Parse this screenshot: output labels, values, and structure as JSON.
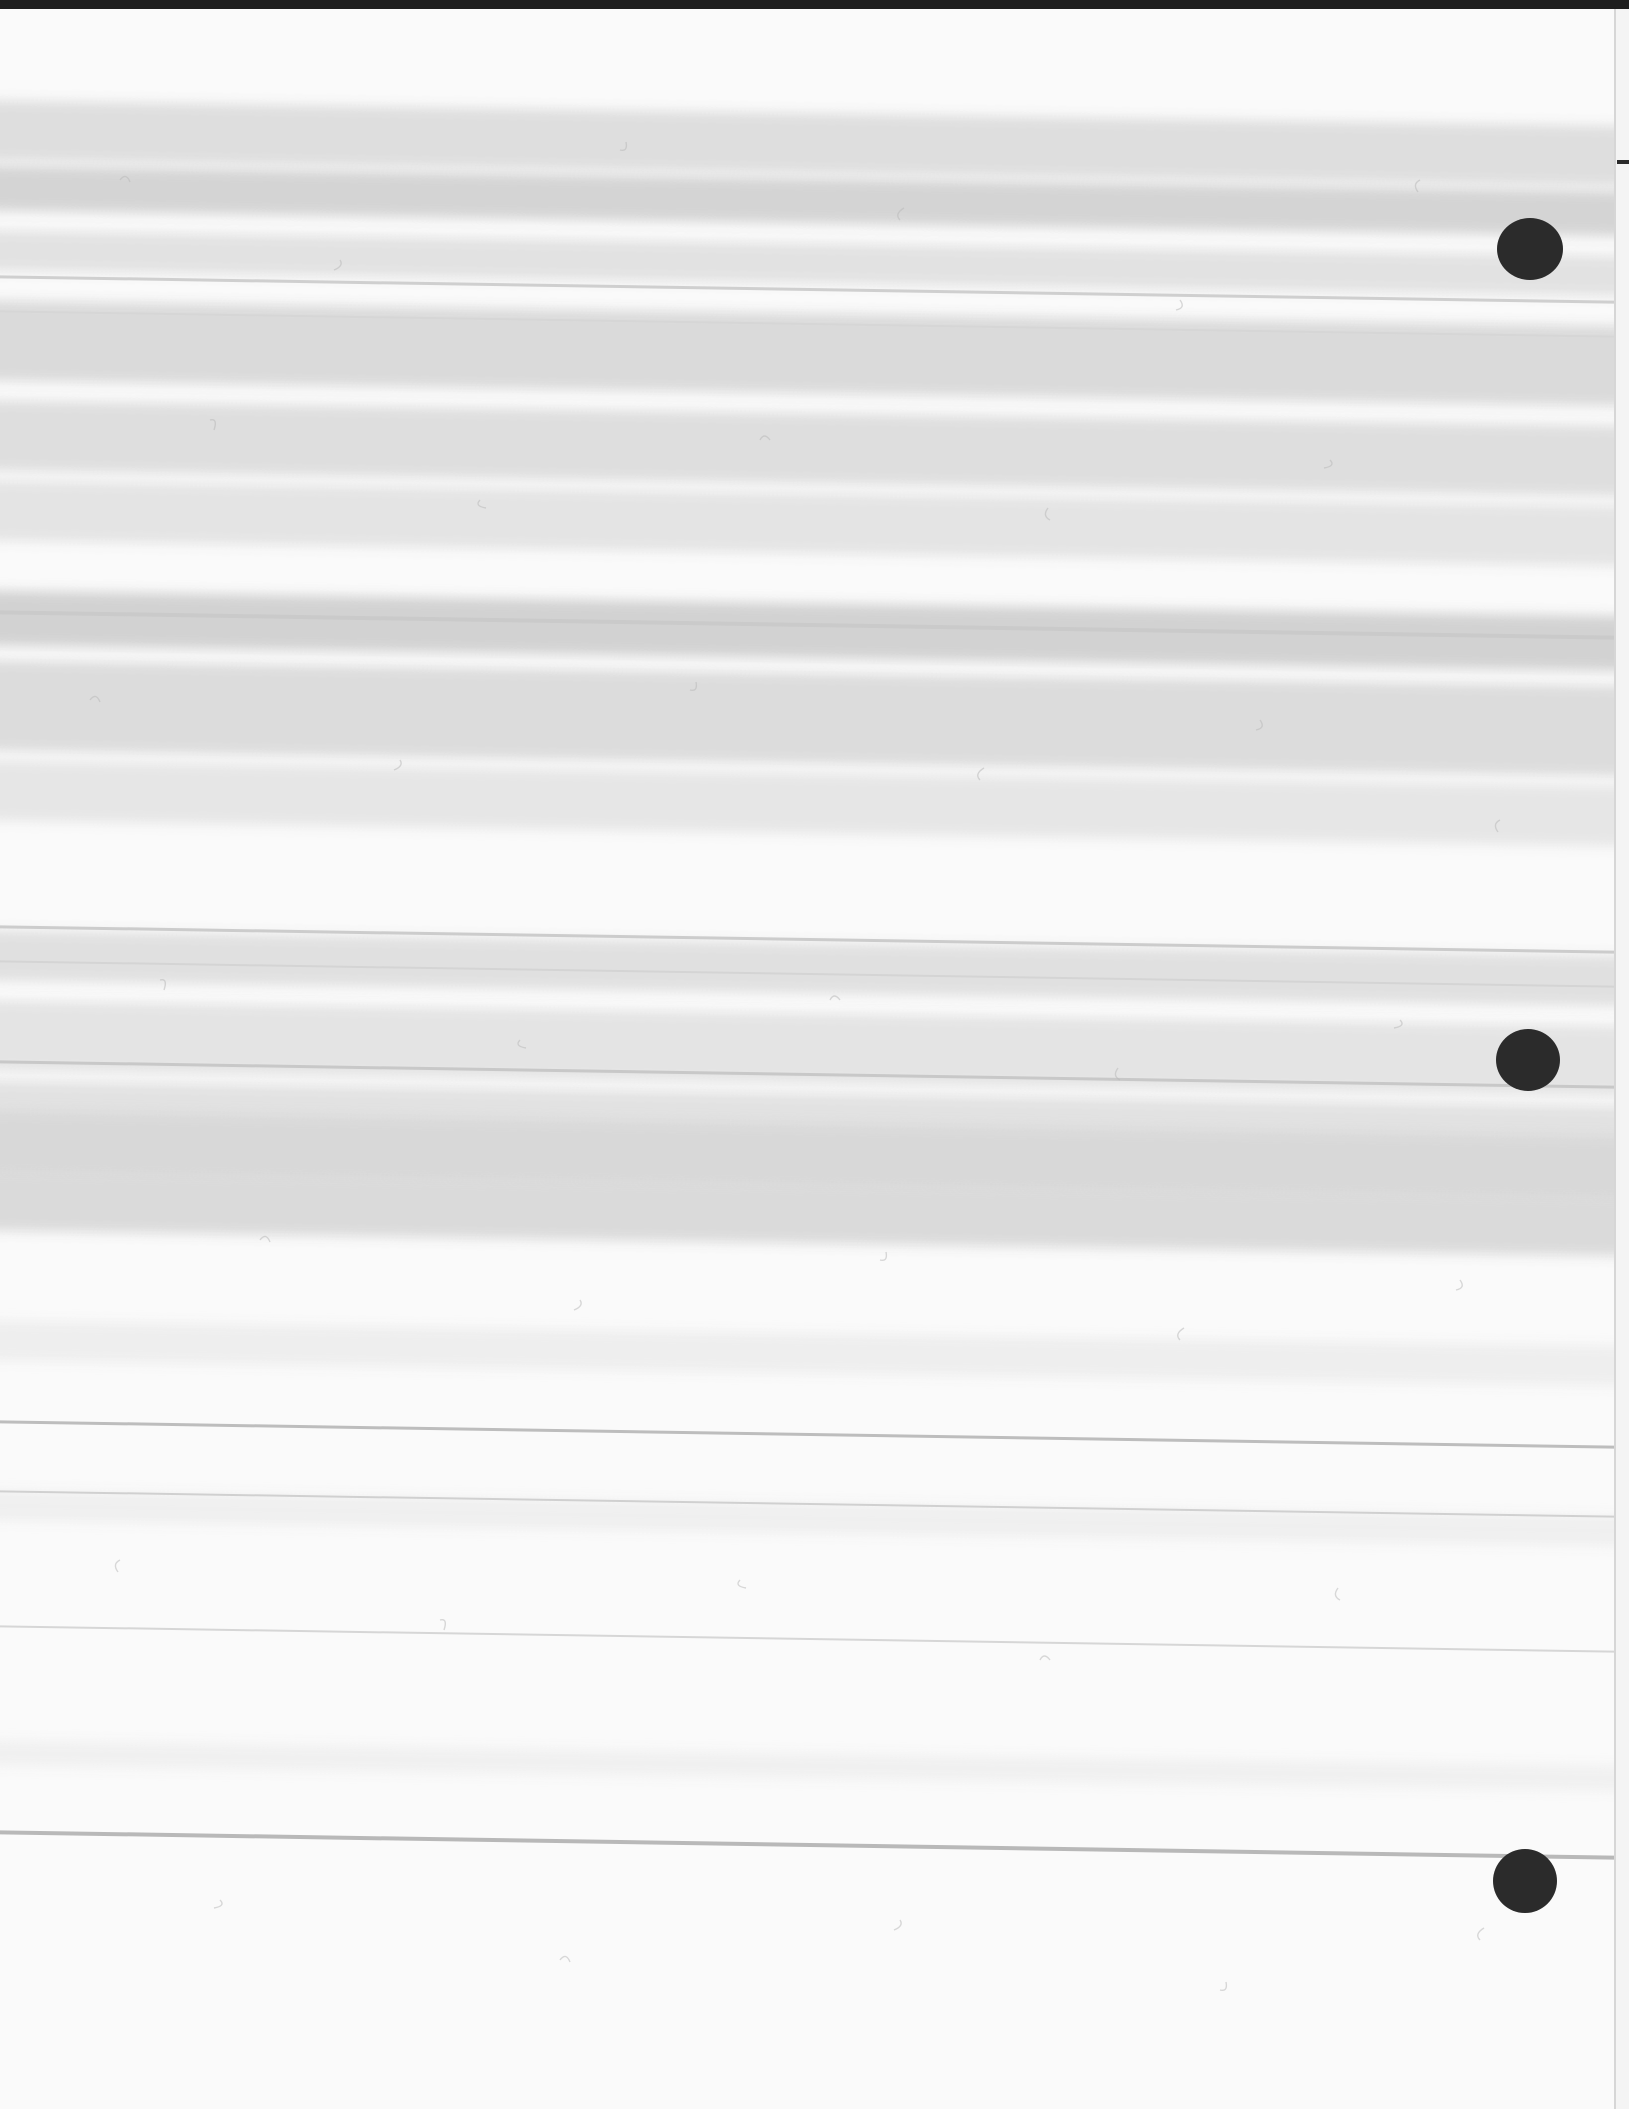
{
  "document": {
    "description_visible_text": "",
    "paper_color": "#fafafa",
    "streak_color": "#c8c8c8",
    "hole_color": "#2b2b2b"
  }
}
